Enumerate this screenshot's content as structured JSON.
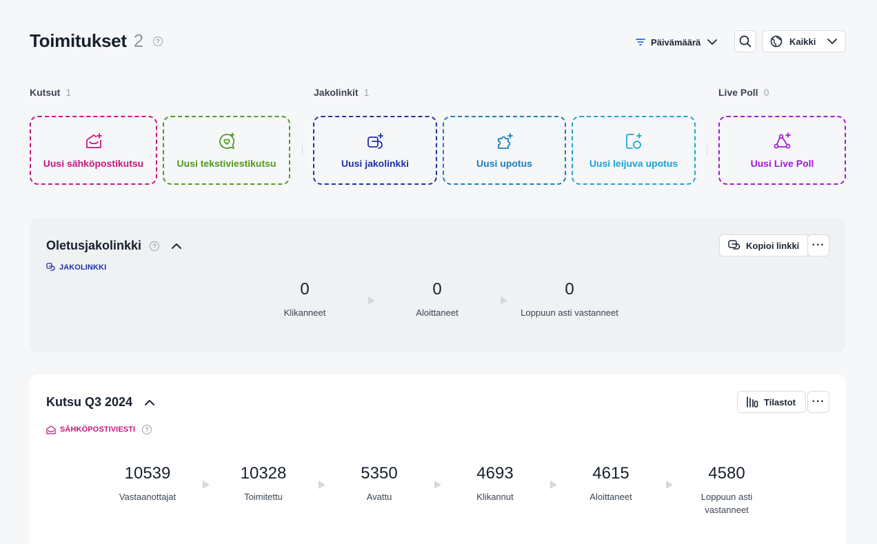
{
  "header": {
    "title": "Toimitukset",
    "count": "2",
    "date_filter_label": "Päivämäärä",
    "scope_label": "Kaikki"
  },
  "categories": {
    "kutsut": {
      "label": "Kutsut",
      "count": "1"
    },
    "jakolinkit": {
      "label": "Jakolinkit",
      "count": "1"
    },
    "live_poll": {
      "label": "Live Poll",
      "count": "0"
    }
  },
  "create_cards": [
    {
      "label": "Uusi sähköpostikutsu",
      "color": "#c8157f",
      "icon": "mail-plus-icon"
    },
    {
      "label": "Uusi tekstiviestikutsu",
      "color": "#4e9a1c",
      "icon": "chat-heart-icon"
    },
    {
      "label": "Uusi jakolinkki",
      "color": "#1f2fa8",
      "icon": "link-plus-icon"
    },
    {
      "label": "Uusi upotus",
      "color": "#1a7dbd",
      "icon": "puzzle-plus-icon"
    },
    {
      "label": "Uusi leijuva upotus",
      "color": "#1aa3d6",
      "icon": "floating-embed-icon"
    },
    {
      "label": "Uusi Live Poll",
      "color": "#a316d6",
      "icon": "poll-plus-icon"
    }
  ],
  "panel_default_link": {
    "title": "Oletusjakolinkki",
    "type_tag": "JAKOLINKKI",
    "copy_button": "Kopioi linkki",
    "stats": [
      {
        "value": "0",
        "label": "Klikanneet"
      },
      {
        "value": "0",
        "label": "Aloittaneet"
      },
      {
        "value": "0",
        "label": "Loppuun asti vastanneet"
      }
    ]
  },
  "panel_invite": {
    "title": "Kutsu Q3 2024",
    "type_tag": "SÄHKÖPOSTIVIESTI",
    "stats_button": "Tilastot",
    "stats": [
      {
        "value": "10539",
        "label": "Vastaanottajat"
      },
      {
        "value": "10328",
        "label": "Toimitettu"
      },
      {
        "value": "5350",
        "label": "Avattu"
      },
      {
        "value": "4693",
        "label": "Klikannut"
      },
      {
        "value": "4615",
        "label": "Aloittaneet"
      },
      {
        "value": "4580",
        "label": "Loppuun asti vastanneet"
      }
    ]
  }
}
